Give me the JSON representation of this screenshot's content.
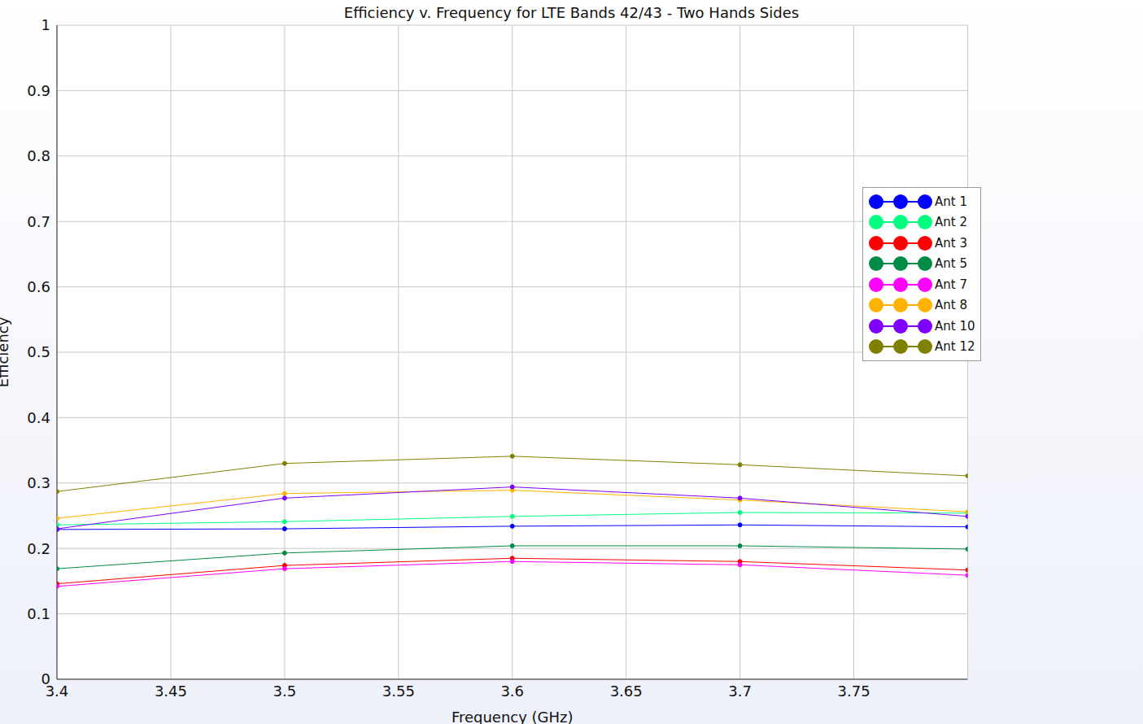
{
  "chart_data": {
    "type": "line",
    "title": "Efficiency v. Frequency for LTE Bands 42/43 - Two Hands Sides",
    "x_label": "Frequency (GHz)",
    "y_label": "Efficiency",
    "x": [
      3.4,
      3.5,
      3.6,
      3.7,
      3.8
    ],
    "xlim": [
      3.4,
      3.8
    ],
    "xticks": [
      3.4,
      3.45,
      3.5,
      3.55,
      3.6,
      3.65,
      3.7,
      3.75
    ],
    "ylim": [
      0,
      1
    ],
    "yticks": [
      0,
      0.1,
      0.2,
      0.3,
      0.4,
      0.5,
      0.6,
      0.7,
      0.8,
      0.9,
      1
    ],
    "grid": true,
    "legend": "right",
    "marker": "circle",
    "series": [
      {
        "name": "Ant 1",
        "color": "#0000ff",
        "values": [
          0.229,
          0.23,
          0.234,
          0.236,
          0.233
        ]
      },
      {
        "name": "Ant 2",
        "color": "#00ff7f",
        "values": [
          0.236,
          0.241,
          0.249,
          0.255,
          0.254
        ]
      },
      {
        "name": "Ant 3",
        "color": "#ff0000",
        "values": [
          0.146,
          0.174,
          0.185,
          0.18,
          0.167
        ]
      },
      {
        "name": "Ant 5",
        "color": "#008c46",
        "values": [
          0.169,
          0.193,
          0.204,
          0.204,
          0.199
        ]
      },
      {
        "name": "Ant 7",
        "color": "#ff00ff",
        "values": [
          0.142,
          0.169,
          0.18,
          0.175,
          0.159
        ]
      },
      {
        "name": "Ant 8",
        "color": "#ffb300",
        "values": [
          0.246,
          0.284,
          0.289,
          0.274,
          0.256
        ]
      },
      {
        "name": "Ant 10",
        "color": "#7f00ff",
        "values": [
          0.23,
          0.277,
          0.294,
          0.277,
          0.249
        ]
      },
      {
        "name": "Ant 12",
        "color": "#808000",
        "values": [
          0.287,
          0.33,
          0.341,
          0.328,
          0.311
        ]
      }
    ]
  }
}
